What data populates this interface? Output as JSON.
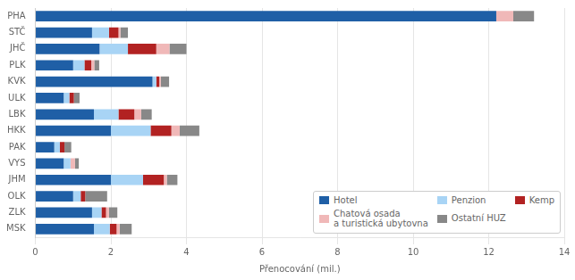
{
  "chart_data": {
    "type": "bar",
    "orientation": "horizontal",
    "stacked": true,
    "categories": [
      "PHA",
      "STČ",
      "JHČ",
      "PLK",
      "KVK",
      "ULK",
      "LBK",
      "HKK",
      "PAK",
      "VYS",
      "JHM",
      "OLK",
      "ZLK",
      "MSK"
    ],
    "series": [
      {
        "name": "Hotel",
        "color": "#1f5fa6",
        "values": [
          12.2,
          1.5,
          1.7,
          1.0,
          3.1,
          0.75,
          1.55,
          2.0,
          0.5,
          0.75,
          2.0,
          1.0,
          1.5,
          1.55
        ]
      },
      {
        "name": "Penzion",
        "color": "#a8d4f5",
        "values": [
          0.0,
          0.45,
          0.75,
          0.3,
          0.1,
          0.15,
          0.65,
          1.05,
          0.15,
          0.18,
          0.85,
          0.2,
          0.25,
          0.42
        ]
      },
      {
        "name": "Kemp",
        "color": "#b22222",
        "values": [
          0.0,
          0.25,
          0.75,
          0.18,
          0.08,
          0.12,
          0.42,
          0.55,
          0.12,
          0.0,
          0.55,
          0.12,
          0.12,
          0.18
        ]
      },
      {
        "name": "Chatová osada\na turistická ubytovna",
        "color": "#f0b8b8",
        "values": [
          0.45,
          0.05,
          0.35,
          0.08,
          0.04,
          0.0,
          0.18,
          0.22,
          0.0,
          0.12,
          0.08,
          0.0,
          0.08,
          0.08
        ]
      },
      {
        "name": "Ostatní HUZ",
        "color": "#888888",
        "values": [
          0.55,
          0.2,
          0.45,
          0.13,
          0.22,
          0.15,
          0.28,
          0.52,
          0.18,
          0.1,
          0.28,
          0.58,
          0.22,
          0.32
        ]
      }
    ],
    "xlabel": "Přenocování (mil.)",
    "xlim": [
      0,
      14
    ],
    "xticks": [
      0,
      2,
      4,
      6,
      8,
      10,
      12,
      14
    ],
    "grid": true,
    "legend": "lower right"
  }
}
